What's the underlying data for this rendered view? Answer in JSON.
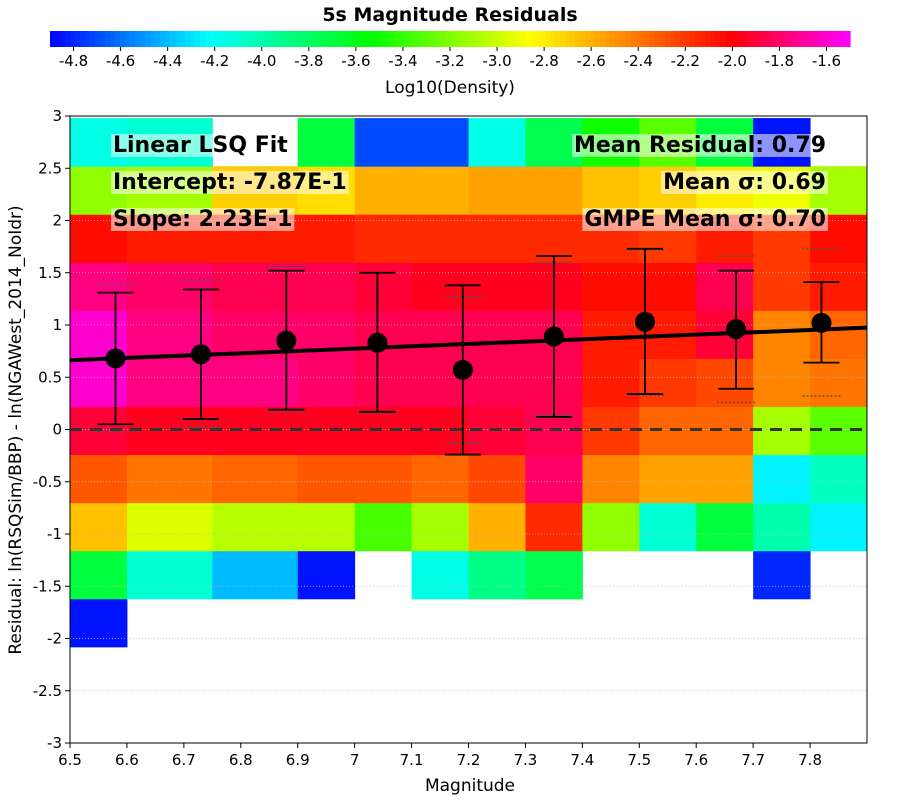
{
  "chart_data": {
    "type": "heatmap",
    "title": "5s Magnitude Residuals",
    "colorbar": {
      "label": "Log10(Density)",
      "range": [
        -4.9,
        -1.5
      ],
      "ticks": [
        "-4.8",
        "-4.6",
        "-4.4",
        "-4.2",
        "-4.0",
        "-3.8",
        "-3.6",
        "-3.4",
        "-3.2",
        "-3.0",
        "-2.8",
        "-2.6",
        "-2.4",
        "-2.2",
        "-2.0",
        "-1.8",
        "-1.6"
      ]
    },
    "xlabel": "Magnitude",
    "ylabel": "Residual: ln(RSQSim/BBP) - ln(NGAWest_2014_NoIdr)",
    "xlim": [
      6.5,
      7.9
    ],
    "ylim": [
      -3,
      3
    ],
    "xticks": [
      "6.5",
      "6.6",
      "6.7",
      "6.8",
      "6.9",
      "7",
      "7.1",
      "7.2",
      "7.3",
      "7.4",
      "7.5",
      "7.6",
      "7.7",
      "7.8"
    ],
    "yticks": [
      "3",
      "2.5",
      "2",
      "1.5",
      "1",
      "0.5",
      "0",
      "-0.5",
      "-1",
      "-1.5",
      "-2",
      "-2.5",
      "-3"
    ],
    "grid": true,
    "x_edges": [
      6.5,
      6.6,
      6.75,
      6.9,
      7.0,
      7.1,
      7.2,
      7.3,
      7.4,
      7.5,
      7.6,
      7.7,
      7.8,
      7.9
    ],
    "y_edges": [
      -2.08,
      -1.62,
      -1.16,
      -0.7,
      -0.24,
      0.22,
      0.68,
      1.14,
      1.6,
      2.06,
      2.52,
      2.98
    ],
    "cells": [
      [
        -4.85,
        null,
        null,
        null,
        null,
        null,
        null,
        null,
        null,
        null,
        null,
        null,
        null
      ],
      [
        -3.7,
        -4.1,
        -4.4,
        -4.85,
        null,
        -4.15,
        -3.9,
        -3.75,
        null,
        null,
        null,
        -4.8,
        null
      ],
      [
        -2.65,
        -2.95,
        -3.05,
        -3.05,
        -3.35,
        -3.1,
        -2.6,
        -2.15,
        -3.15,
        -4.1,
        -3.7,
        -4.0,
        -4.25
      ],
      [
        -2.3,
        -2.4,
        -2.35,
        -2.3,
        -2.3,
        -2.35,
        -2.25,
        -1.8,
        -2.45,
        -2.55,
        -2.55,
        -4.25,
        -4.05
      ],
      [
        -1.9,
        -1.95,
        -1.95,
        -1.95,
        -1.95,
        -1.95,
        -1.9,
        -1.85,
        -2.2,
        -2.35,
        -2.35,
        -3.1,
        -3.3
      ],
      [
        -1.6,
        -1.75,
        -1.75,
        -1.8,
        -1.85,
        -1.85,
        -1.85,
        -1.85,
        -2.1,
        -2.2,
        -2.25,
        -2.45,
        -2.4
      ],
      [
        -1.6,
        -1.75,
        -1.8,
        -1.8,
        -1.85,
        -1.85,
        -1.85,
        -1.85,
        -2.1,
        -2.1,
        -1.9,
        -2.45,
        -2.35
      ],
      [
        -1.75,
        -1.8,
        -1.85,
        -1.85,
        -1.9,
        -1.95,
        -1.95,
        -1.95,
        -2.05,
        -2.05,
        -1.85,
        -2.2,
        -2.1
      ],
      [
        -2.05,
        -2.1,
        -2.1,
        -2.1,
        -2.15,
        -2.15,
        -2.15,
        -2.15,
        -2.15,
        -2.2,
        -2.1,
        -2.2,
        -2.05
      ],
      [
        -3.15,
        -3.1,
        -2.7,
        -2.75,
        -2.6,
        -2.6,
        -2.55,
        -2.55,
        -2.65,
        -2.7,
        -2.8,
        -2.9,
        -3.1
      ],
      [
        -4.15,
        -4.1,
        null,
        -3.7,
        -4.7,
        -4.7,
        -4.15,
        -3.75,
        -3.5,
        -3.3,
        -3.7,
        -4.85,
        null
      ]
    ],
    "series": [
      {
        "x": [
          6.58,
          6.73,
          6.88,
          7.04,
          7.19,
          7.35,
          7.51,
          7.67,
          7.82
        ],
        "y": [
          0.68,
          0.72,
          0.85,
          0.83,
          0.57,
          0.89,
          1.03,
          0.96,
          1.02
        ],
        "err_low": [
          0.05,
          0.1,
          0.19,
          0.17,
          -0.24,
          0.12,
          0.34,
          0.39,
          0.64
        ],
        "err_high": [
          1.31,
          1.34,
          1.52,
          1.5,
          1.38,
          1.66,
          1.73,
          1.52,
          1.41
        ]
      }
    ],
    "fit_line": {
      "intercept": -0.787,
      "slope": 0.223
    },
    "zero_line": 0,
    "gmpe_sigma": {
      "x": [
        6.58,
        6.73,
        6.88,
        7.04,
        7.19,
        7.35,
        7.51,
        7.67,
        7.82
      ],
      "low": [
        -0.02,
        0.02,
        0.17,
        0.16,
        -0.13,
        0.14,
        0.33,
        0.26,
        0.32
      ],
      "high": [
        1.39,
        1.43,
        1.56,
        1.5,
        1.27,
        1.6,
        1.72,
        1.66,
        1.73
      ]
    },
    "annotations_left": [
      "Linear LSQ Fit",
      "Intercept: -7.87E-1",
      "Slope: 2.23E-1"
    ],
    "annotations_right": [
      "Mean Residual: 0.79",
      "Mean σ: 0.69",
      "GMPE Mean σ: 0.70"
    ]
  }
}
